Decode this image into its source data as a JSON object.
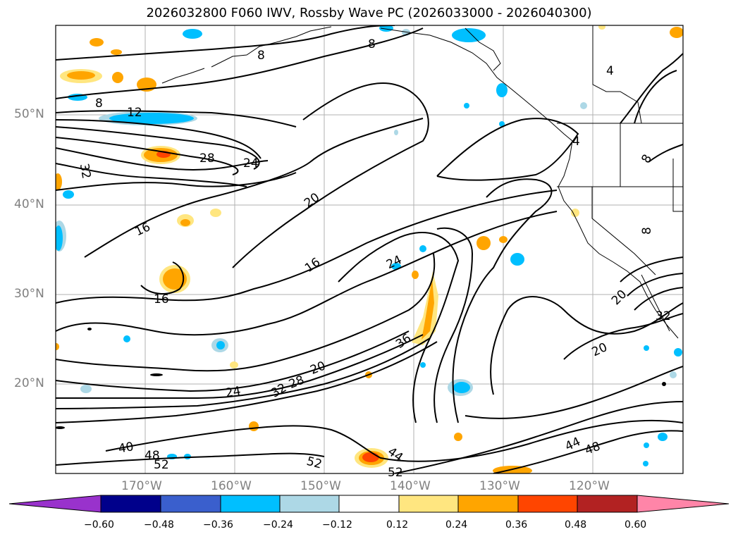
{
  "title": "2026032800 F060 IWV, Rossby Wave PC (2026033000 - 2026040300)",
  "lat_labels": [
    "50°N",
    "40°N",
    "30°N",
    "20°N"
  ],
  "lon_labels": [
    "170°W",
    "160°W",
    "150°W",
    "140°W",
    "130°W",
    "120°W"
  ],
  "colorbar": {
    "ticks": [
      "−0.60",
      "−0.48",
      "−0.36",
      "−0.24",
      "−0.12",
      "0.12",
      "0.24",
      "0.36",
      "0.48",
      "0.60"
    ],
    "colors": [
      "#9932cc",
      "#00008b",
      "#3a5fcd",
      "#00bfff",
      "#add8e6",
      "#ffffff",
      "#ffe680",
      "#ffa500",
      "#ff4500",
      "#b22222",
      "#ff85a8"
    ]
  },
  "contour_labels": [
    {
      "text": "8",
      "name": "contour-label-8-a"
    },
    {
      "text": "8",
      "name": "contour-label-8-b"
    },
    {
      "text": "8",
      "name": "contour-label-8-c"
    },
    {
      "text": "12",
      "name": "contour-label-12"
    },
    {
      "text": "28",
      "name": "contour-label-28-a"
    },
    {
      "text": "24",
      "name": "contour-label-24-a"
    },
    {
      "text": "32",
      "name": "contour-label-32"
    },
    {
      "text": "20",
      "name": "contour-label-20-a"
    },
    {
      "text": "16",
      "name": "contour-label-16-a"
    },
    {
      "text": "16",
      "name": "contour-label-16-b"
    },
    {
      "text": "16",
      "name": "contour-label-16-c"
    },
    {
      "text": "24",
      "name": "contour-label-24-b"
    },
    {
      "text": "36",
      "name": "contour-label-36"
    },
    {
      "text": "20",
      "name": "contour-label-20-b"
    },
    {
      "text": "28",
      "name": "contour-label-28-b"
    },
    {
      "text": "24",
      "name": "contour-label-24-c"
    },
    {
      "text": "32",
      "name": "contour-label-32-b"
    },
    {
      "text": "40",
      "name": "contour-label-40"
    },
    {
      "text": "48",
      "name": "contour-label-48-a"
    },
    {
      "text": "52",
      "name": "contour-label-52-a"
    },
    {
      "text": "52",
      "name": "contour-label-52-b"
    },
    {
      "text": "44",
      "name": "contour-label-44-a"
    },
    {
      "text": "52",
      "name": "contour-label-52-c"
    },
    {
      "text": "44",
      "name": "contour-label-44-b"
    },
    {
      "text": "48",
      "name": "contour-label-48-b"
    },
    {
      "text": "20",
      "name": "contour-label-20-c"
    },
    {
      "text": "20",
      "name": "contour-label-20-d"
    },
    {
      "text": "32",
      "name": "contour-label-32-c"
    },
    {
      "text": "4",
      "name": "contour-label-4-a"
    },
    {
      "text": "4",
      "name": "contour-label-4-b"
    },
    {
      "text": "8",
      "name": "contour-label-8-d"
    },
    {
      "text": "8",
      "name": "contour-label-8-e"
    }
  ]
}
